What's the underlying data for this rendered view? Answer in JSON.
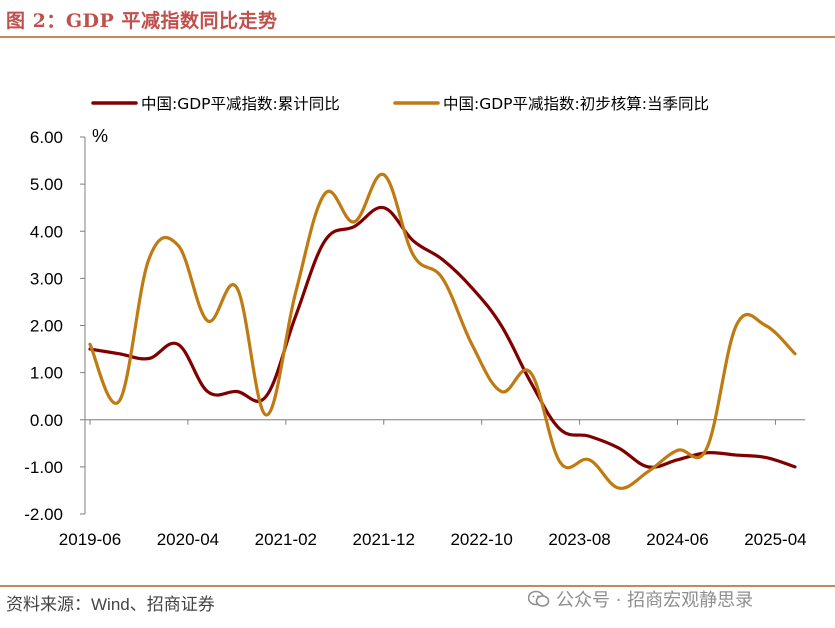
{
  "figure": {
    "title": "图 2：GDP 平减指数同比走势",
    "source": "资料来源：Wind、招商证券",
    "watermark": "公众号 · 招商宏观静思录"
  },
  "colors": {
    "title": "#c0504d",
    "rule": "#c9865a",
    "series_cumulative": "#800000",
    "series_quarterly": "#c07a12"
  },
  "chart_data": {
    "type": "line",
    "unit_label": "%",
    "ylim": [
      -2,
      6
    ],
    "yticks": [
      "6.00",
      "5.00",
      "4.00",
      "3.00",
      "2.00",
      "1.00",
      "0.00",
      "-1.00",
      "-2.00"
    ],
    "xticks": [
      "2019-06",
      "2020-04",
      "2021-02",
      "2021-12",
      "2022-10",
      "2023-08",
      "2024-06",
      "2025-04"
    ],
    "x": [
      "2019-06",
      "2019-09",
      "2019-12",
      "2020-03",
      "2020-06",
      "2020-09",
      "2020-12",
      "2021-03",
      "2021-06",
      "2021-09",
      "2021-12",
      "2022-03",
      "2022-06",
      "2022-09",
      "2022-12",
      "2023-03",
      "2023-06",
      "2023-09",
      "2023-12",
      "2024-03",
      "2024-06",
      "2024-09",
      "2024-12",
      "2025-03",
      "2025-06"
    ],
    "grid": false,
    "legend_position": "top",
    "series": [
      {
        "name": "中国:GDP平减指数:累计同比",
        "values": [
          1.5,
          1.4,
          1.3,
          1.6,
          0.6,
          0.6,
          0.5,
          2.2,
          3.8,
          4.1,
          4.5,
          3.8,
          3.4,
          2.8,
          2.0,
          0.8,
          -0.2,
          -0.35,
          -0.6,
          -1.0,
          -0.85,
          -0.7,
          -0.75,
          -0.8,
          -1.0
        ]
      },
      {
        "name": "中国:GDP平减指数:初步核算:当季同比",
        "values": [
          1.6,
          0.4,
          3.4,
          3.7,
          2.1,
          2.8,
          0.1,
          2.7,
          4.8,
          4.2,
          5.2,
          3.5,
          3.0,
          1.6,
          0.6,
          1.0,
          -0.9,
          -0.85,
          -1.45,
          -1.1,
          -0.65,
          -0.6,
          2.0,
          2.0,
          1.4
        ]
      }
    ]
  }
}
